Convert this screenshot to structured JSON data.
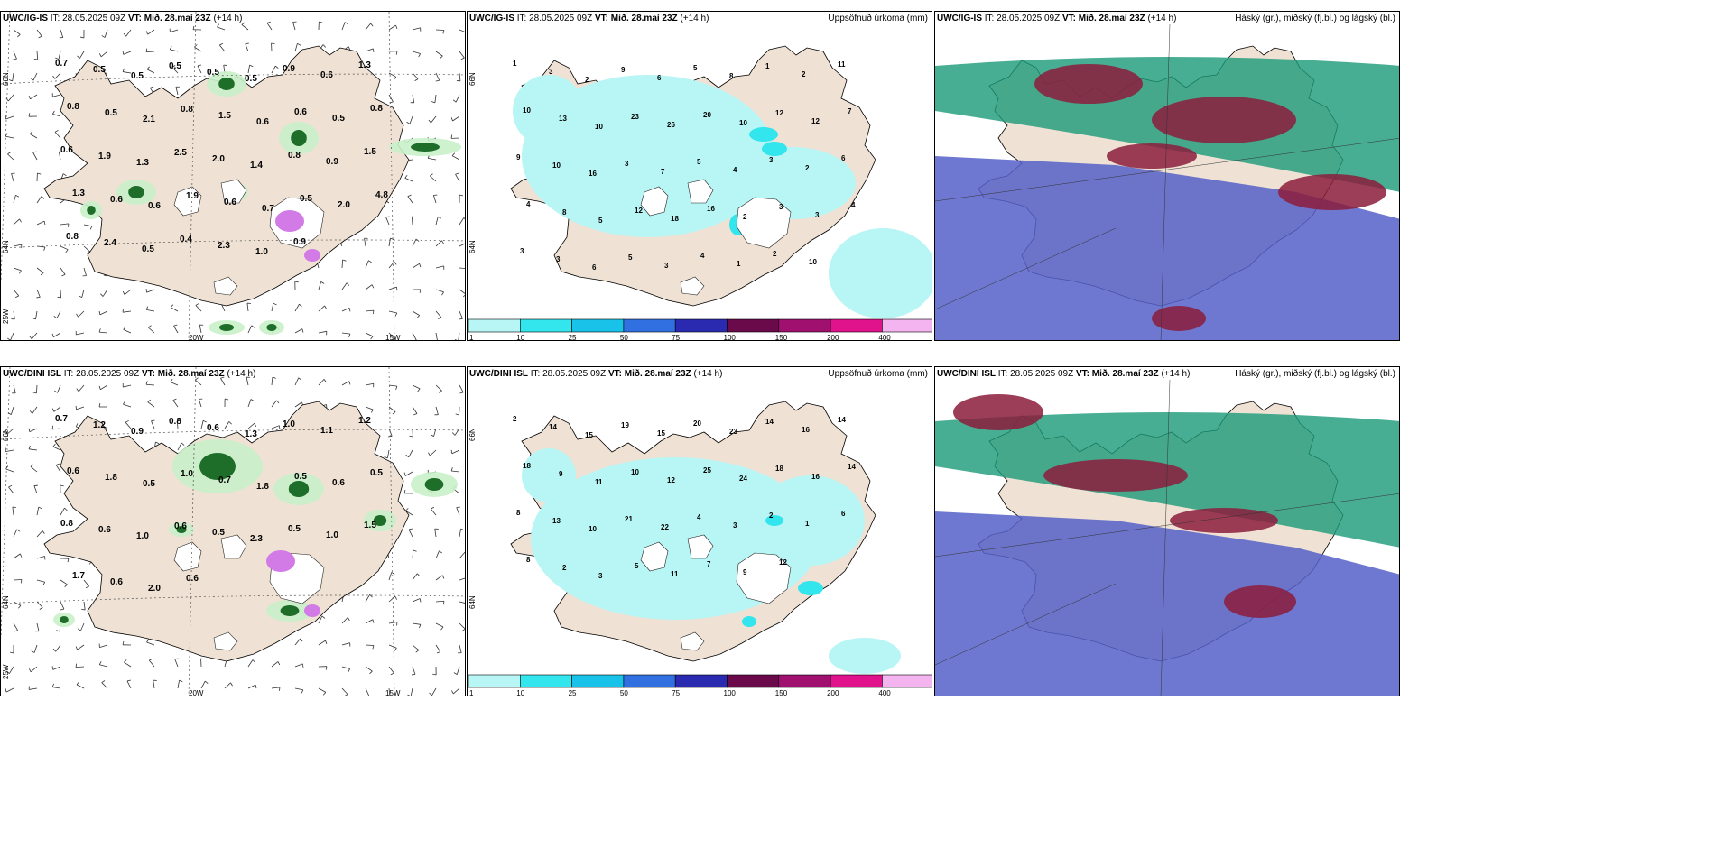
{
  "colors": {
    "land": "#efe2d4",
    "sea": "#ffffff",
    "precip_light": "#b8f5f5",
    "precip_mid": "#33e5ec",
    "green_light": "#c9f0c9",
    "green_dark": "#1e6e2a",
    "magenta": "#d27be6",
    "cloud_high": "#1a9a78",
    "cloud_mid": "#8c1c3c",
    "cloud_low": "#5560c8"
  },
  "rows": [
    {
      "panels": [
        {
          "kind": "wind",
          "model": "UWC/IG-IS",
          "it_label": "IT:",
          "it_value": "28.05.2025 09Z",
          "vt_label": "VT:",
          "vt_value": "Mið. 28.maí 23Z",
          "lead": "(+14 h)",
          "title_right": "",
          "coords": {
            "lat_top": "66N",
            "lat_mid": "64N",
            "lon_left": "25W",
            "lon_mid": "20W",
            "lon_right": "15W"
          },
          "values": [
            "0.7",
            "0.5",
            "0.5",
            "0.5",
            "0.5",
            "0.5",
            "0.9",
            "0.6",
            "1.3",
            "0.8",
            "0.5",
            "2.1",
            "0.8",
            "1.5",
            "0.6",
            "0.6",
            "0.5",
            "0.8",
            "0.6",
            "1.9",
            "1.3",
            "2.5",
            "2.0",
            "1.4",
            "0.8",
            "0.9",
            "1.5",
            "1.3",
            "0.6",
            "0.6",
            "1.9",
            "0.6",
            "0.7",
            "0.5",
            "2.0",
            "4.8",
            "0.8",
            "2.4",
            "0.5",
            "0.4",
            "2.3",
            "1.0",
            "0.9"
          ]
        },
        {
          "kind": "precip",
          "model": "UWC/IG-IS",
          "it_label": "IT:",
          "it_value": "28.05.2025 09Z",
          "vt_label": "VT:",
          "vt_value": "Mið. 28.maí 23Z",
          "lead": "(+14 h)",
          "title_right": "Uppsöfnuð úrkoma (mm)",
          "coords": {
            "lat_top": "66N",
            "lat_mid": "64N"
          },
          "values": [
            "1",
            "3",
            "2",
            "9",
            "6",
            "5",
            "8",
            "1",
            "2",
            "11",
            "10",
            "13",
            "10",
            "23",
            "26",
            "20",
            "10",
            "12",
            "12",
            "7",
            "9",
            "10",
            "16",
            "3",
            "7",
            "5",
            "4",
            "3",
            "2",
            "6",
            "4",
            "8",
            "5",
            "12",
            "18",
            "16",
            "2",
            "3",
            "3",
            "4",
            "3",
            "3",
            "6",
            "5",
            "3",
            "4",
            "1",
            "2",
            "10"
          ],
          "colorbar": [
            "1",
            "10",
            "25",
            "50",
            "75",
            "100",
            "150",
            "200",
            "400"
          ]
        },
        {
          "kind": "cloud",
          "model": "UWC/IG-IS",
          "it_label": "IT:",
          "it_value": "28.05.2025 09Z",
          "vt_label": "VT:",
          "vt_value": "Mið. 28.maí 23Z",
          "lead": "(+14 h)",
          "title_right": "Háský (gr.), miðský (fj.bl.) og lágský (bl.)"
        }
      ]
    },
    {
      "panels": [
        {
          "kind": "wind",
          "model": "UWC/DINI ISL",
          "it_label": "IT:",
          "it_value": "28.05.2025 09Z",
          "vt_label": "VT:",
          "vt_value": "Mið. 28.maí 23Z",
          "lead": "(+14 h)",
          "title_right": "",
          "coords": {
            "lat_top": "66N",
            "lat_mid": "64N",
            "lon_left": "25W",
            "lon_mid": "20W",
            "lon_right": "15W"
          },
          "values": [
            "0.7",
            "1.2",
            "0.9",
            "0.8",
            "0.6",
            "1.3",
            "1.0",
            "1.1",
            "1.2",
            "0.6",
            "1.8",
            "0.5",
            "1.0",
            "0.7",
            "1.8",
            "0.5",
            "0.6",
            "0.5",
            "0.8",
            "0.6",
            "1.0",
            "0.6",
            "0.5",
            "2.3",
            "0.5",
            "1.0",
            "1.5",
            "1.7",
            "0.6",
            "2.0",
            "0.6"
          ]
        },
        {
          "kind": "precip",
          "model": "UWC/DINI ISL",
          "it_label": "IT:",
          "it_value": "28.05.2025 09Z",
          "vt_label": "VT:",
          "vt_value": "Mið. 28.maí 23Z",
          "lead": "(+14 h)",
          "title_right": "Uppsöfnuð úrkoma (mm)",
          "coords": {
            "lat_top": "66N",
            "lat_mid": "64N"
          },
          "values": [
            "2",
            "14",
            "15",
            "19",
            "15",
            "20",
            "23",
            "14",
            "16",
            "14",
            "18",
            "9",
            "11",
            "10",
            "12",
            "25",
            "24",
            "18",
            "16",
            "14",
            "8",
            "13",
            "10",
            "21",
            "22",
            "4",
            "3",
            "2",
            "1",
            "6",
            "8",
            "2",
            "3",
            "5",
            "11",
            "7",
            "9",
            "12"
          ],
          "colorbar": [
            "1",
            "10",
            "25",
            "50",
            "75",
            "100",
            "150",
            "200",
            "400"
          ]
        },
        {
          "kind": "cloud",
          "model": "UWC/DINI ISL",
          "it_label": "IT:",
          "it_value": "28.05.2025 09Z",
          "vt_label": "VT:",
          "vt_value": "Mið. 28.maí 23Z",
          "lead": "(+14 h)",
          "title_right": "Háský (gr.), miðský (fj.bl.) og lágský (bl.)"
        }
      ]
    }
  ]
}
